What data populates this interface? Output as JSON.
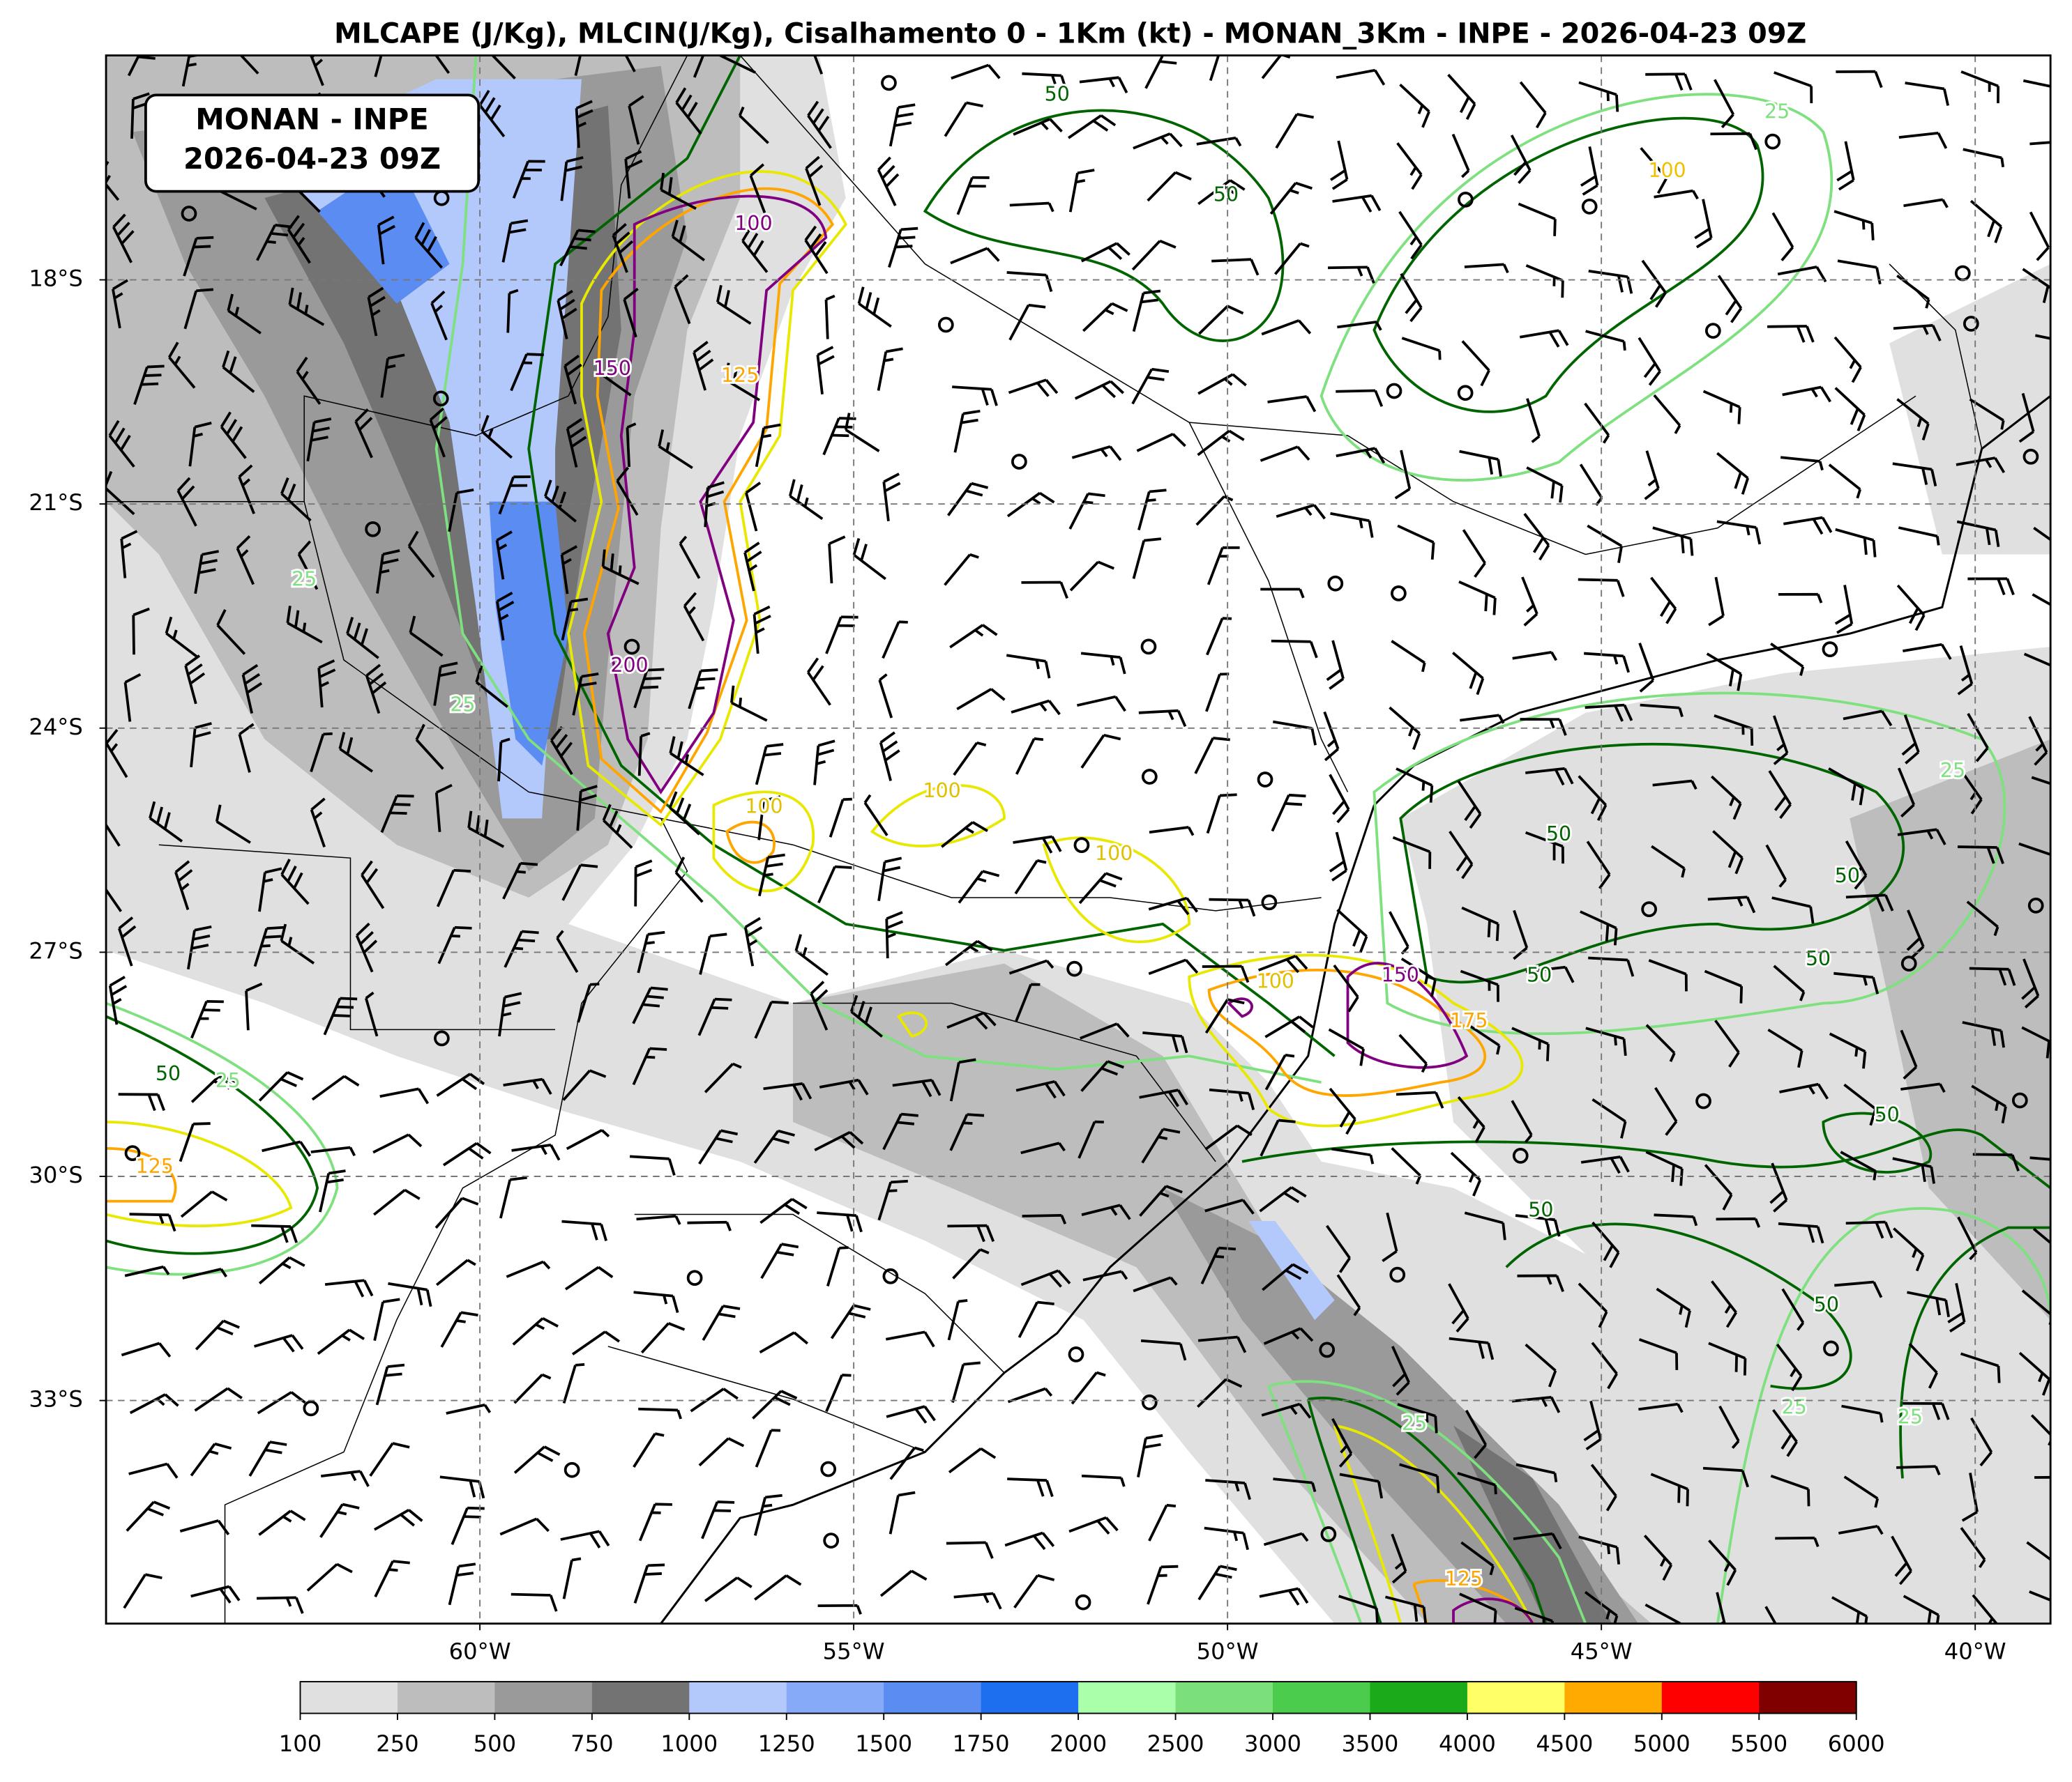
{
  "header": {
    "title": "MLCAPE (J/Kg), MLCIN(J/Kg), Cisalhamento 0 - 1Km (kt) - MONAN_3Km - INPE - 2026-04-23 09Z"
  },
  "info_box": {
    "line1": "MONAN - INPE",
    "line2": "2026-04-23 09Z"
  },
  "axes": {
    "lon_ticks": [
      {
        "value": -60,
        "label": "60°W"
      },
      {
        "value": -55,
        "label": "55°W"
      },
      {
        "value": -50,
        "label": "50°W"
      },
      {
        "value": -45,
        "label": "45°W"
      },
      {
        "value": -40,
        "label": "40°W"
      }
    ],
    "lat_ticks": [
      {
        "value": -18,
        "label": "18°S"
      },
      {
        "value": -21,
        "label": "21°S"
      },
      {
        "value": -24,
        "label": "24°S"
      },
      {
        "value": -27,
        "label": "27°S"
      },
      {
        "value": -30,
        "label": "30°S"
      },
      {
        "value": -33,
        "label": "33°S"
      }
    ]
  },
  "colorbar": {
    "levels": [
      100,
      250,
      500,
      750,
      1000,
      1250,
      1500,
      1750,
      2000,
      2500,
      3000,
      3500,
      4000,
      4500,
      5000,
      5500,
      6000
    ],
    "colors": [
      "#e0e0e0",
      "#bdbdbd",
      "#9a9a9a",
      "#737373",
      "#b3c8fb",
      "#86aaf7",
      "#5a8cf2",
      "#1e6ef0",
      "#aaffaa",
      "#7be07b",
      "#4ccc4c",
      "#1aaa1a",
      "#ffff66",
      "#ffaa00",
      "#ff0000",
      "#800000"
    ]
  },
  "contour_labels": [
    {
      "value": 50,
      "lon": -52.28,
      "lat": -15.53,
      "color": "#006400"
    },
    {
      "value": 50,
      "lon": -50.02,
      "lat": -16.87,
      "color": "#006400"
    },
    {
      "value": 25,
      "lon": -42.65,
      "lat": -15.76,
      "color": "#7ee07e"
    },
    {
      "value": 100,
      "lon": -44.12,
      "lat": -16.55,
      "color": "#f0c000"
    },
    {
      "value": 100,
      "lon": -56.34,
      "lat": -17.26,
      "color": "#800080"
    },
    {
      "value": 150,
      "lon": -58.23,
      "lat": -19.2,
      "color": "#800080"
    },
    {
      "value": 125,
      "lon": -56.52,
      "lat": -19.29,
      "color": "#ffa500"
    },
    {
      "value": 200,
      "lon": -58.0,
      "lat": -23.17,
      "color": "#800080"
    },
    {
      "value": 25,
      "lon": -62.35,
      "lat": -22.02,
      "color": "#7ee07e"
    },
    {
      "value": 25,
      "lon": -60.23,
      "lat": -23.7,
      "color": "#7ee07e"
    },
    {
      "value": 100,
      "lon": -56.2,
      "lat": -25.06,
      "color": "#e0c000"
    },
    {
      "value": 100,
      "lon": -53.82,
      "lat": -24.85,
      "color": "#e0c000"
    },
    {
      "value": 100,
      "lon": -51.52,
      "lat": -25.69,
      "color": "#e0c000"
    },
    {
      "value": 50,
      "lon": -45.57,
      "lat": -25.43,
      "color": "#006400"
    },
    {
      "value": 25,
      "lon": -40.3,
      "lat": -24.58,
      "color": "#7ee07e"
    },
    {
      "value": 50,
      "lon": -41.71,
      "lat": -25.99,
      "color": "#006400"
    },
    {
      "value": 50,
      "lon": -42.1,
      "lat": -27.1,
      "color": "#006400"
    },
    {
      "value": 50,
      "lon": -45.83,
      "lat": -27.32,
      "color": "#006400"
    },
    {
      "value": 100,
      "lon": -49.36,
      "lat": -27.4,
      "color": "#e0c000"
    },
    {
      "value": 150,
      "lon": -47.69,
      "lat": -27.32,
      "color": "#800080"
    },
    {
      "value": 175,
      "lon": -46.77,
      "lat": -27.93,
      "color": "#ffa500"
    },
    {
      "value": 50,
      "lon": -64.17,
      "lat": -28.64,
      "color": "#006400"
    },
    {
      "value": 25,
      "lon": -63.37,
      "lat": -28.73,
      "color": "#7ee07e"
    },
    {
      "value": 125,
      "lon": -64.35,
      "lat": -29.88,
      "color": "#ffa500"
    },
    {
      "value": 50,
      "lon": -41.18,
      "lat": -29.19,
      "color": "#006400"
    },
    {
      "value": 50,
      "lon": -45.81,
      "lat": -30.46,
      "color": "#006400"
    },
    {
      "value": 50,
      "lon": -41.99,
      "lat": -31.73,
      "color": "#006400"
    },
    {
      "value": 25,
      "lon": -47.5,
      "lat": -33.32,
      "color": "#7ee07e"
    },
    {
      "value": 25,
      "lon": -40.87,
      "lat": -33.23,
      "color": "#7ee07e"
    },
    {
      "value": 25,
      "lon": -42.42,
      "lat": -33.1,
      "color": "#7ee07e"
    },
    {
      "value": 125,
      "lon": -46.84,
      "lat": -35.4,
      "color": "#ffa500"
    }
  ]
}
